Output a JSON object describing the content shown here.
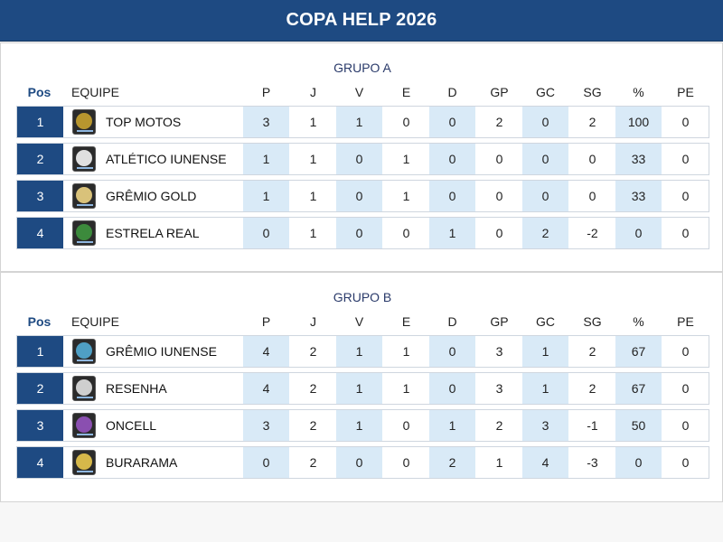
{
  "header": {
    "title": "COPA HELP 2026"
  },
  "columns": {
    "pos": "Pos",
    "team": "EQUIPE",
    "stats": [
      "P",
      "J",
      "V",
      "E",
      "D",
      "GP",
      "GC",
      "SG",
      "%",
      "PE"
    ]
  },
  "groups": [
    {
      "title": "GRUPO A",
      "rows": [
        {
          "pos": "1",
          "team": "TOP MOTOS",
          "logo_color": "#b8962e",
          "stats": [
            "3",
            "1",
            "1",
            "0",
            "0",
            "2",
            "0",
            "2",
            "100",
            "0"
          ]
        },
        {
          "pos": "2",
          "team": "ATLÉTICO IUNENSE",
          "logo_color": "#e0e0e0",
          "stats": [
            "1",
            "1",
            "0",
            "1",
            "0",
            "0",
            "0",
            "0",
            "33",
            "0"
          ]
        },
        {
          "pos": "3",
          "team": "GRÊMIO GOLD",
          "logo_color": "#d9c27a",
          "stats": [
            "1",
            "1",
            "0",
            "1",
            "0",
            "0",
            "0",
            "0",
            "33",
            "0"
          ]
        },
        {
          "pos": "4",
          "team": "ESTRELA REAL",
          "logo_color": "#3c8a3c",
          "stats": [
            "0",
            "1",
            "0",
            "0",
            "1",
            "0",
            "2",
            "-2",
            "0",
            "0"
          ]
        }
      ]
    },
    {
      "title": "GRUPO B",
      "rows": [
        {
          "pos": "1",
          "team": "GRÊMIO IUNENSE",
          "logo_color": "#4f9fc4",
          "stats": [
            "4",
            "2",
            "1",
            "1",
            "0",
            "3",
            "1",
            "2",
            "67",
            "0"
          ]
        },
        {
          "pos": "2",
          "team": "RESENHA",
          "logo_color": "#cfcfcf",
          "stats": [
            "4",
            "2",
            "1",
            "1",
            "0",
            "3",
            "1",
            "2",
            "67",
            "0"
          ]
        },
        {
          "pos": "3",
          "team": "ONCELL",
          "logo_color": "#8a4fb0",
          "stats": [
            "3",
            "2",
            "1",
            "0",
            "1",
            "2",
            "3",
            "-1",
            "50",
            "0"
          ]
        },
        {
          "pos": "4",
          "team": "BURARAMA",
          "logo_color": "#d6b84a",
          "stats": [
            "0",
            "2",
            "0",
            "0",
            "2",
            "1",
            "4",
            "-3",
            "0",
            "0"
          ]
        }
      ]
    }
  ]
}
